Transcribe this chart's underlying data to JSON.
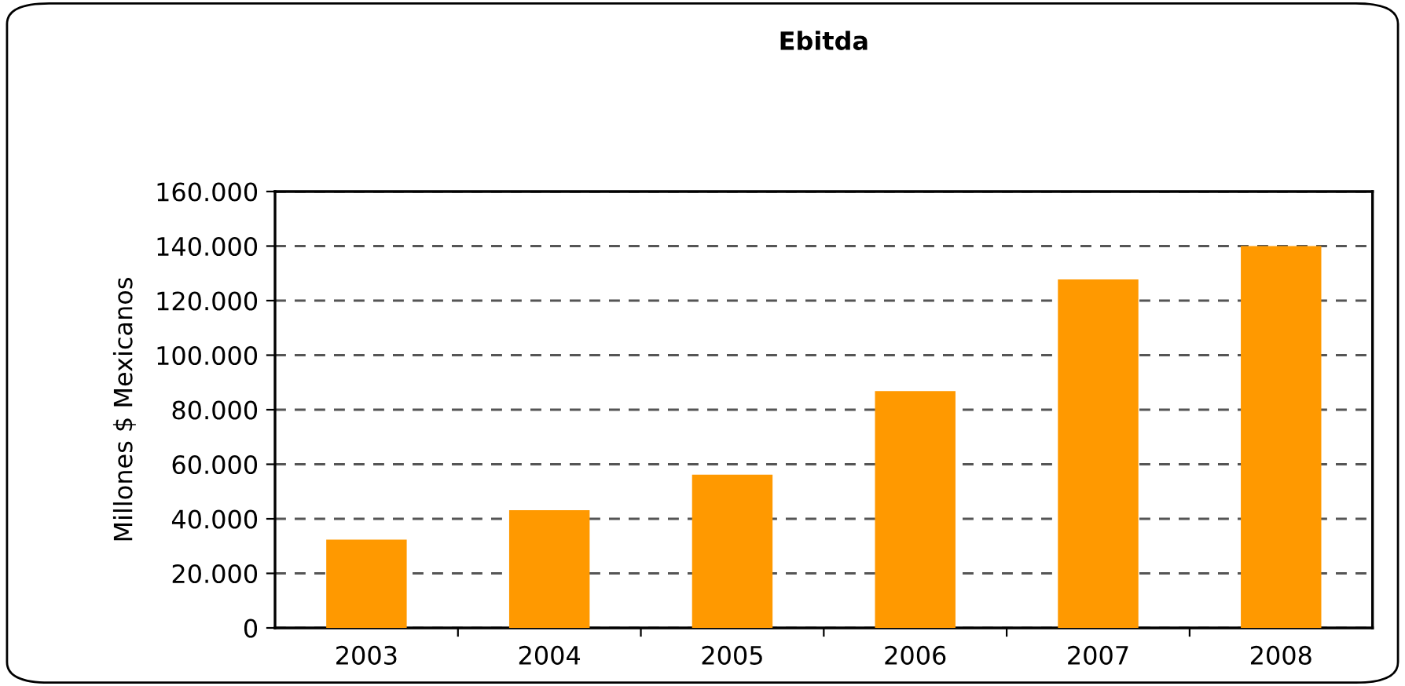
{
  "chart_data": {
    "type": "bar",
    "title": "Ebitda",
    "ylabel": "Millones $ Mexicanos",
    "categories": [
      "2003",
      "2004",
      "2005",
      "2006",
      "2007",
      "2008"
    ],
    "values": [
      32400,
      43200,
      56200,
      86800,
      127800,
      140000
    ],
    "color": "#ff9900",
    "ylim": [
      0,
      160000
    ],
    "yticks": [
      0,
      {
        "value": 20000,
        "label": "20.000"
      },
      {
        "value": 40000,
        "label": "40.000"
      },
      {
        "value": 60000,
        "label": "60.000"
      },
      {
        "value": 80000,
        "label": "80.000"
      },
      {
        "value": 100000,
        "label": "100.000"
      },
      {
        "value": 120000,
        "label": "120.000"
      },
      {
        "value": 140000,
        "label": "140.000"
      },
      {
        "value": 160000,
        "label": "160.000"
      }
    ],
    "grid": "y",
    "line_style": "dashed"
  }
}
